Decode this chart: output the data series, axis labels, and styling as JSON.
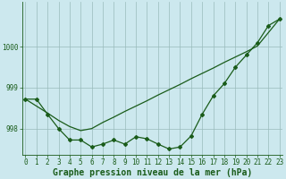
{
  "xlabel": "Graphe pression niveau de la mer (hPa)",
  "bg_color": "#cce8ee",
  "grid_color": "#99bbbb",
  "line_color": "#1a5c1a",
  "marker": "D",
  "markersize": 2.0,
  "linewidth": 0.9,
  "x": [
    0,
    1,
    2,
    3,
    4,
    5,
    6,
    7,
    8,
    9,
    10,
    11,
    12,
    13,
    14,
    15,
    16,
    17,
    18,
    19,
    20,
    21,
    22,
    23
  ],
  "y_main": [
    998.72,
    998.72,
    998.35,
    998.0,
    997.72,
    997.72,
    997.55,
    997.62,
    997.72,
    997.62,
    997.8,
    997.75,
    997.62,
    997.5,
    997.55,
    997.82,
    998.35,
    998.8,
    999.1,
    999.5,
    999.8,
    1000.1,
    1000.52,
    1000.68
  ],
  "y_trend": [
    998.72,
    998.55,
    998.38,
    998.2,
    998.05,
    997.95,
    998.0,
    998.15,
    998.28,
    998.42,
    998.55,
    998.68,
    998.82,
    998.95,
    999.08,
    999.22,
    999.35,
    999.48,
    999.62,
    999.75,
    999.88,
    1000.02,
    1000.35,
    1000.68
  ],
  "yticks": [
    998,
    999,
    1000
  ],
  "xticks": [
    0,
    1,
    2,
    3,
    4,
    5,
    6,
    7,
    8,
    9,
    10,
    11,
    12,
    13,
    14,
    15,
    16,
    17,
    18,
    19,
    20,
    21,
    22,
    23
  ],
  "ylim": [
    997.35,
    1001.1
  ],
  "xlim": [
    -0.3,
    23.3
  ],
  "tick_fontsize": 5.5,
  "label_fontsize": 7.0,
  "fig_width": 3.2,
  "fig_height": 2.0,
  "dpi": 100
}
